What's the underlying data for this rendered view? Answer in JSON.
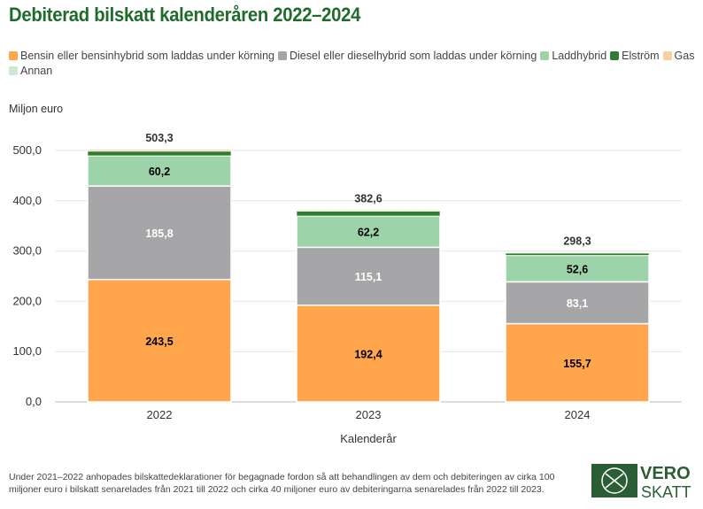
{
  "chart_data": {
    "type": "bar",
    "stacked": true,
    "title": "Debiterad bilskatt kalenderåren 2022–2024",
    "xlabel": "Kalenderår",
    "ylabel": "Miljon euro",
    "ylim": [
      0,
      550
    ],
    "yticks": [
      "0,0",
      "100,0",
      "200,0",
      "300,0",
      "400,0",
      "500,0"
    ],
    "grid": true,
    "legend_position": "top",
    "categories": [
      "2022",
      "2023",
      "2024"
    ],
    "totals": [
      "503,3",
      "382,6",
      "298,3"
    ],
    "series": [
      {
        "name": "Bensin eller bensinhybrid som laddas under körning",
        "color": "#ffa64d",
        "values": [
          243.5,
          192.4,
          155.7
        ],
        "labels": [
          "243,5",
          "192,4",
          "155,7"
        ],
        "label_color": "#000"
      },
      {
        "name": "Diesel eller dieselhybrid som laddas under körning",
        "color": "#a6a6a8",
        "values": [
          185.8,
          115.1,
          83.1
        ],
        "labels": [
          "185,8",
          "115,1",
          "83,1"
        ],
        "label_color": "#fff"
      },
      {
        "name": "Laddhybrid",
        "color": "#9dd3a8",
        "values": [
          60.2,
          62.2,
          52.6
        ],
        "labels": [
          "60,2",
          "62,2",
          "52,6"
        ],
        "label_color": "#000"
      },
      {
        "name": "Elström",
        "color": "#2e7d32",
        "values": [
          9.0,
          9.5,
          4.5
        ]
      },
      {
        "name": "Gas",
        "color": "#f7cfa0",
        "values": [
          3.5,
          2.4,
          1.5
        ]
      },
      {
        "name": "Annan",
        "color": "#cfe6d3",
        "values": [
          1.3,
          1.0,
          0.9
        ]
      }
    ]
  },
  "footnote": "Under 2021–2022 anhopades bilskattedeklarationer för begagnade fordon så att behandlingen av dem och debiteringen av cirka 100 miljoner euro i bilskatt senarelades från 2021 till 2022 och cirka 40 miljoner euro av debiteringarna senarelades från 2022 till 2023.",
  "logo": {
    "line1": "VERO",
    "line2": "SKATT",
    "color": "#2b5e34"
  }
}
